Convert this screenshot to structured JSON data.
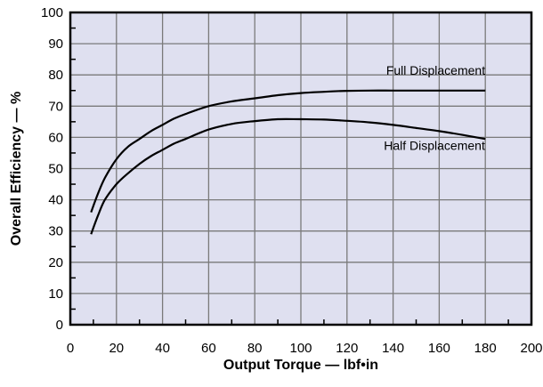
{
  "chart_data": {
    "type": "line",
    "title": "",
    "xlabel": "Output Torque — lbf•in",
    "ylabel": "Overall Efficiency — %",
    "xlim": [
      0,
      200
    ],
    "ylim": [
      0,
      100
    ],
    "x_ticks": [
      0,
      20,
      40,
      60,
      80,
      100,
      120,
      140,
      160,
      180,
      200
    ],
    "y_ticks": [
      0,
      10,
      20,
      30,
      40,
      50,
      60,
      70,
      80,
      90,
      100
    ],
    "grid": true,
    "background_color": "#dfe0f0",
    "grid_color": "#7a7a7a",
    "line_color": "#000000",
    "series": [
      {
        "name": "Full Displacement",
        "x": [
          9,
          12,
          15,
          20,
          25,
          30,
          35,
          40,
          45,
          50,
          60,
          70,
          80,
          90,
          100,
          110,
          120,
          130,
          140,
          150,
          160,
          170,
          180
        ],
        "values": [
          36,
          42,
          47,
          53,
          57,
          59.5,
          62,
          64,
          66,
          67.5,
          70,
          71.5,
          72.5,
          73.5,
          74.2,
          74.6,
          74.9,
          75,
          75,
          75,
          75,
          75,
          75
        ]
      },
      {
        "name": "Half Displacement",
        "x": [
          9,
          12,
          15,
          20,
          25,
          30,
          35,
          40,
          45,
          50,
          60,
          70,
          80,
          90,
          100,
          110,
          120,
          130,
          140,
          150,
          160,
          170,
          180
        ],
        "values": [
          29,
          35,
          40,
          45,
          48.5,
          51.5,
          54,
          56,
          58,
          59.5,
          62.5,
          64.3,
          65.2,
          65.8,
          65.8,
          65.7,
          65.3,
          64.8,
          64,
          63,
          62,
          60.8,
          59.5
        ]
      }
    ],
    "annotations": [
      {
        "text": "Full Displacement",
        "x": 137,
        "y": 80
      },
      {
        "text": "Half Displacement",
        "x": 136,
        "y": 56
      }
    ]
  }
}
